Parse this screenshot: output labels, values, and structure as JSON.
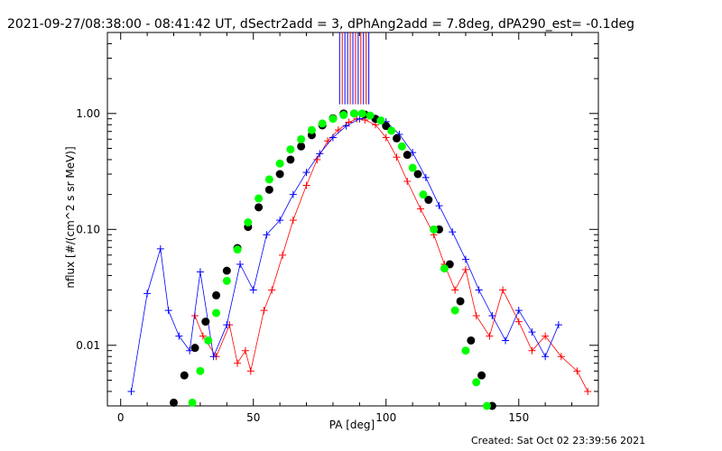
{
  "chart_data": {
    "type": "scatter",
    "title": "2021-09-27/08:38:00 - 08:41:42 UT, dSectr2add = 3, dPhAng2add = 7.8deg, dPA290_est= -0.1deg",
    "xlabel": "PA [deg]",
    "ylabel": "nflux [#/(cm^2 s sr MeV)]",
    "xlim": [
      -5,
      180
    ],
    "ylim": [
      0.003,
      5
    ],
    "yscale": "log",
    "x_ticks": [
      0,
      50,
      100,
      150
    ],
    "x_tick_labels": [
      "0",
      "50",
      "100",
      "150"
    ],
    "y_ticks": [
      0.01,
      0.1,
      1.0
    ],
    "y_tick_labels": [
      "0.01",
      "0.10",
      "1.00"
    ],
    "grid": false,
    "colors": {
      "red": "#ff0000",
      "blue": "#0000ff",
      "black": "#000000",
      "green": "#00ff00"
    },
    "vertical_bar_lines": {
      "y_bottom": 1.2,
      "x": [
        82.5,
        83.5,
        84.5,
        85.5,
        86.5,
        87.5,
        88.5,
        89.5,
        90.5,
        91.5,
        92.5,
        93.5
      ],
      "colors": [
        "#0000ff",
        "#ff0000",
        "#0000ff",
        "#0000ff",
        "#ff0000",
        "#0000ff",
        "#ff0000",
        "#0000ff",
        "#ff0000",
        "#0000ff",
        "#ff0000",
        "#0000ff"
      ]
    },
    "series": [
      {
        "color": "red",
        "marker": "plus",
        "x": [
          28,
          31,
          36,
          41,
          44,
          47,
          49,
          54,
          57,
          61,
          65,
          70,
          74,
          78,
          82,
          86,
          89,
          92,
          96,
          100,
          104,
          108,
          113,
          118,
          122,
          126,
          130,
          134,
          139,
          144,
          150,
          155,
          160,
          166,
          172,
          176
        ],
        "y": [
          0.018,
          0.012,
          0.008,
          0.015,
          0.007,
          0.009,
          0.006,
          0.02,
          0.03,
          0.06,
          0.12,
          0.24,
          0.4,
          0.58,
          0.72,
          0.84,
          0.9,
          0.88,
          0.8,
          0.62,
          0.42,
          0.26,
          0.15,
          0.09,
          0.05,
          0.03,
          0.045,
          0.018,
          0.012,
          0.03,
          0.016,
          0.009,
          0.012,
          0.008,
          0.006,
          0.004
        ]
      },
      {
        "color": "blue",
        "marker": "plus",
        "x": [
          4,
          10,
          15,
          18,
          22,
          26,
          30,
          35,
          40,
          45,
          50,
          55,
          60,
          65,
          70,
          75,
          80,
          85,
          90,
          95,
          100,
          105,
          110,
          115,
          120,
          125,
          130,
          135,
          140,
          145,
          150,
          155,
          160,
          165
        ],
        "y": [
          0.004,
          0.028,
          0.068,
          0.02,
          0.012,
          0.009,
          0.043,
          0.008,
          0.015,
          0.05,
          0.03,
          0.09,
          0.12,
          0.2,
          0.31,
          0.45,
          0.62,
          0.78,
          0.9,
          0.93,
          0.85,
          0.66,
          0.46,
          0.28,
          0.16,
          0.095,
          0.055,
          0.03,
          0.018,
          0.011,
          0.02,
          0.013,
          0.008,
          0.015
        ]
      },
      {
        "color": "black",
        "marker": "dot",
        "x": [
          20,
          24,
          28,
          32,
          36,
          40,
          44,
          48,
          52,
          56,
          60,
          64,
          68,
          72,
          76,
          80,
          84,
          88,
          92,
          96,
          100,
          104,
          108,
          112,
          116,
          120,
          124,
          128,
          132,
          136,
          140
        ],
        "y": [
          0.0032,
          0.0055,
          0.0095,
          0.016,
          0.027,
          0.044,
          0.069,
          0.105,
          0.155,
          0.22,
          0.3,
          0.4,
          0.52,
          0.65,
          0.79,
          0.91,
          1.0,
          1.0,
          0.98,
          0.9,
          0.78,
          0.61,
          0.44,
          0.3,
          0.18,
          0.1,
          0.05,
          0.024,
          0.011,
          0.0055,
          0.003
        ]
      },
      {
        "color": "green",
        "marker": "dot",
        "x": [
          27,
          30,
          33,
          36,
          40,
          44,
          48,
          52,
          56,
          60,
          64,
          68,
          72,
          76,
          80,
          84,
          88,
          91,
          94,
          98,
          102,
          106,
          110,
          114,
          118,
          122,
          126,
          130,
          134,
          138
        ],
        "y": [
          0.0032,
          0.006,
          0.011,
          0.019,
          0.036,
          0.067,
          0.115,
          0.185,
          0.27,
          0.37,
          0.49,
          0.6,
          0.72,
          0.82,
          0.9,
          0.97,
          1.0,
          1.0,
          0.96,
          0.87,
          0.71,
          0.52,
          0.34,
          0.2,
          0.1,
          0.046,
          0.02,
          0.009,
          0.0048,
          0.003
        ]
      }
    ]
  },
  "footer": {
    "created": "Created: Sat Oct 02 23:39:56 2021"
  }
}
